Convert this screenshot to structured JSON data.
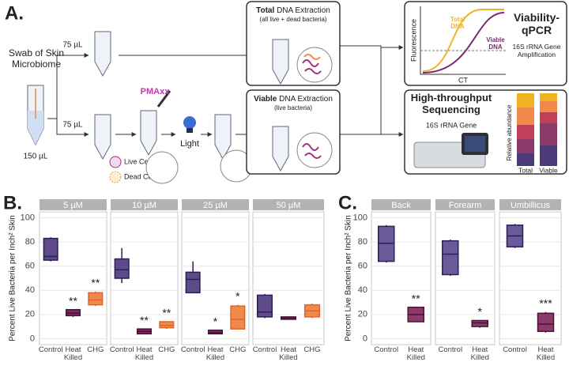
{
  "diagram": {
    "panel": "A.",
    "swab": "Swab of Skin Microbiome",
    "swab_volume": "150 µL",
    "split_volumes": [
      "75 µL",
      "75 µL"
    ],
    "dye": "PMAxx",
    "light": "Light",
    "legend": [
      "Live Cell",
      "Dead Cell"
    ],
    "total_extraction": {
      "bold": "Total",
      "title": "DNA Extraction",
      "note": "(all live + dead bacteria)"
    },
    "viable_extraction": {
      "bold": "Viable",
      "title": "DNA Extraction",
      "note": "(live bacteria)"
    },
    "qpcr": {
      "title": "Viability-qPCR",
      "subtitle": "16S rRNA Gene Amplification",
      "ylabel": "Fluorescence",
      "xlabel": "CT",
      "curves": [
        "Total DNA",
        "Viable DNA"
      ]
    },
    "sequencing": {
      "title": "High-throughput Sequencing",
      "subtitle": "16S rRNA Gene",
      "ylabel": "Relative abundance",
      "bars": [
        "Total",
        "Viable"
      ]
    }
  },
  "chart_data": [
    {
      "type": "box",
      "panel": "B.",
      "ylabel": "Percent Live Bacteria per Inch² Skin",
      "ylim": [
        -5,
        105
      ],
      "yticks": [
        0,
        20,
        40,
        60,
        80,
        100
      ],
      "grid": true,
      "categories": [
        "Control",
        "Heat Killed",
        "CHG"
      ],
      "colors": [
        "#5e4b8b",
        "#7a2a5e",
        "#f08a4b"
      ],
      "edge_colors": [
        "#2e1f54",
        "#4b1238",
        "#e2632a"
      ],
      "facets": [
        {
          "name": "5 µM",
          "boxes": [
            {
              "min": 64,
              "q1": 65,
              "median": 68,
              "q3": 83,
              "max": 84
            },
            {
              "min": 18,
              "q1": 19,
              "median": 21,
              "q3": 24,
              "max": 24,
              "sig": "**"
            },
            {
              "min": 27,
              "q1": 28,
              "median": 32,
              "q3": 38,
              "max": 39,
              "sig": "**"
            }
          ]
        },
        {
          "name": "10 µM",
          "boxes": [
            {
              "min": 46,
              "q1": 50,
              "median": 57,
              "q3": 66,
              "max": 75
            },
            {
              "min": 4,
              "q1": 4,
              "median": 6,
              "q3": 8,
              "max": 8,
              "sig": "**"
            },
            {
              "min": 8,
              "q1": 9,
              "median": 11,
              "q3": 14,
              "max": 14,
              "sig": "**"
            }
          ]
        },
        {
          "name": "25 µM",
          "boxes": [
            {
              "min": 38,
              "q1": 38,
              "median": 49,
              "q3": 55,
              "max": 64
            },
            {
              "min": 4,
              "q1": 4,
              "median": 5,
              "q3": 7,
              "max": 7,
              "sig": "*"
            },
            {
              "min": 8,
              "q1": 8,
              "median": 16,
              "q3": 27,
              "max": 28,
              "sig": "*"
            }
          ]
        },
        {
          "name": "50 µM",
          "boxes": [
            {
              "min": 17,
              "q1": 18,
              "median": 22,
              "q3": 36,
              "max": 37
            },
            {
              "min": 16,
              "q1": 16,
              "median": 17,
              "q3": 18,
              "max": 18
            },
            {
              "min": 17,
              "q1": 18,
              "median": 23,
              "q3": 28,
              "max": 29
            }
          ]
        }
      ]
    },
    {
      "type": "box",
      "panel": "C.",
      "ylabel": "Percent Live Bacteria per Inch² Skin",
      "ylim": [
        -5,
        105
      ],
      "yticks": [
        0,
        20,
        40,
        60,
        80,
        100
      ],
      "grid": true,
      "categories": [
        "Control",
        "Heat Killed"
      ],
      "colors": [
        "#6a5a9a",
        "#8b3a6a"
      ],
      "edge_colors": [
        "#2e1f54",
        "#4b1238"
      ],
      "facets": [
        {
          "name": "Back",
          "boxes": [
            {
              "min": 63,
              "q1": 64,
              "median": 79,
              "q3": 93,
              "max": 94
            },
            {
              "min": 14,
              "q1": 14,
              "median": 20,
              "q3": 26,
              "max": 26,
              "sig": "**"
            }
          ]
        },
        {
          "name": "Forearm",
          "boxes": [
            {
              "min": 52,
              "q1": 53,
              "median": 70,
              "q3": 81,
              "max": 82
            },
            {
              "min": 9,
              "q1": 10,
              "median": 13,
              "q3": 15,
              "max": 15,
              "sig": "*"
            }
          ]
        },
        {
          "name": "Umbillicus",
          "boxes": [
            {
              "min": 75,
              "q1": 76,
              "median": 85,
              "q3": 94,
              "max": 95
            },
            {
              "min": 5,
              "q1": 6,
              "median": 12,
              "q3": 21,
              "max": 22,
              "sig": "***"
            }
          ]
        }
      ]
    }
  ]
}
